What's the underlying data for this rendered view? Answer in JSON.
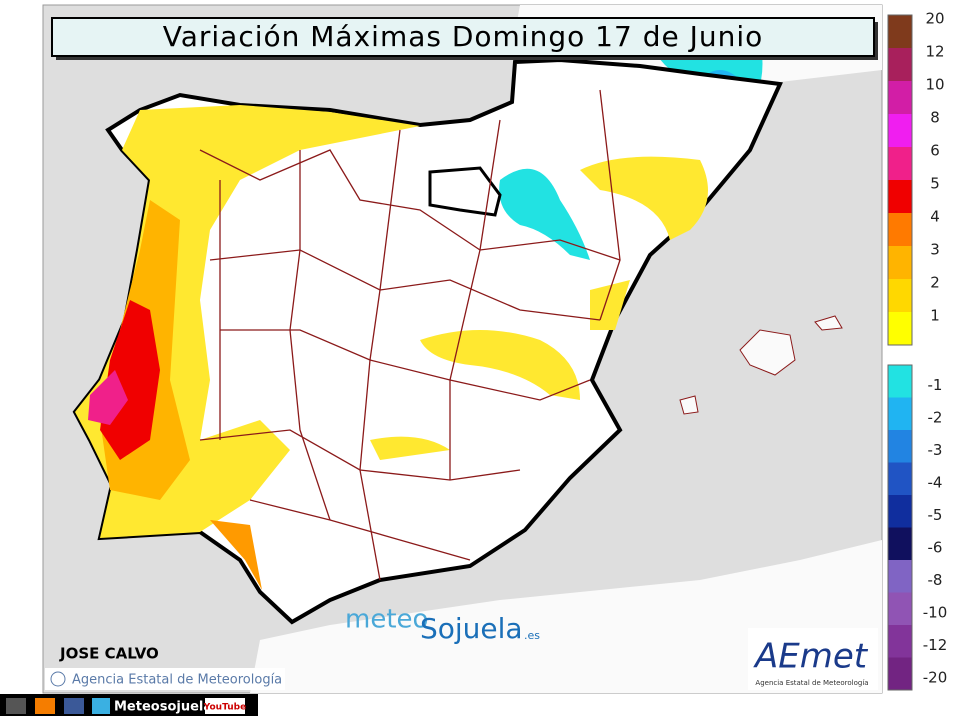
{
  "header": {
    "title": "Variación Máximas  Domingo 17 de Junio"
  },
  "legend": {
    "positive": [
      {
        "label": 20,
        "color": "#7f3a1c"
      },
      {
        "label": 12,
        "color": "#a8205c"
      },
      {
        "label": 10,
        "color": "#d21ea6"
      },
      {
        "label": 8,
        "color": "#f01ef0"
      },
      {
        "label": 6,
        "color": "#f0208a"
      },
      {
        "label": 5,
        "color": "#f00000"
      },
      {
        "label": 4,
        "color": "#ff7a00"
      },
      {
        "label": 3,
        "color": "#ffb400"
      },
      {
        "label": 2,
        "color": "#ffd800"
      },
      {
        "label": 1,
        "color": "#ffff00"
      }
    ],
    "negative": [
      {
        "label": -1,
        "color": "#22e2e2"
      },
      {
        "label": -2,
        "color": "#20b4f2"
      },
      {
        "label": -3,
        "color": "#2284e2"
      },
      {
        "label": -4,
        "color": "#2054c4"
      },
      {
        "label": -5,
        "color": "#102e9e"
      },
      {
        "label": -6,
        "color": "#10105e"
      },
      {
        "label": -8,
        "color": "#8064c4"
      },
      {
        "label": -10,
        "color": "#9054b4"
      },
      {
        "label": -12,
        "color": "#82349a"
      },
      {
        "label": -20,
        "color": "#722482"
      }
    ]
  },
  "credits": {
    "author": "JOSE CALVO",
    "agency": "Agencia Estatal de Meteorología",
    "watermark": {
      "part1": "meteo",
      "part2": "Sojuela",
      "suffix": ".es"
    },
    "logo": {
      "name": "AEmet",
      "subtitle": "Agencia Estatal de Meteorología"
    }
  },
  "footer": {
    "site": "Meteosojuela",
    "video": "YouTube"
  }
}
